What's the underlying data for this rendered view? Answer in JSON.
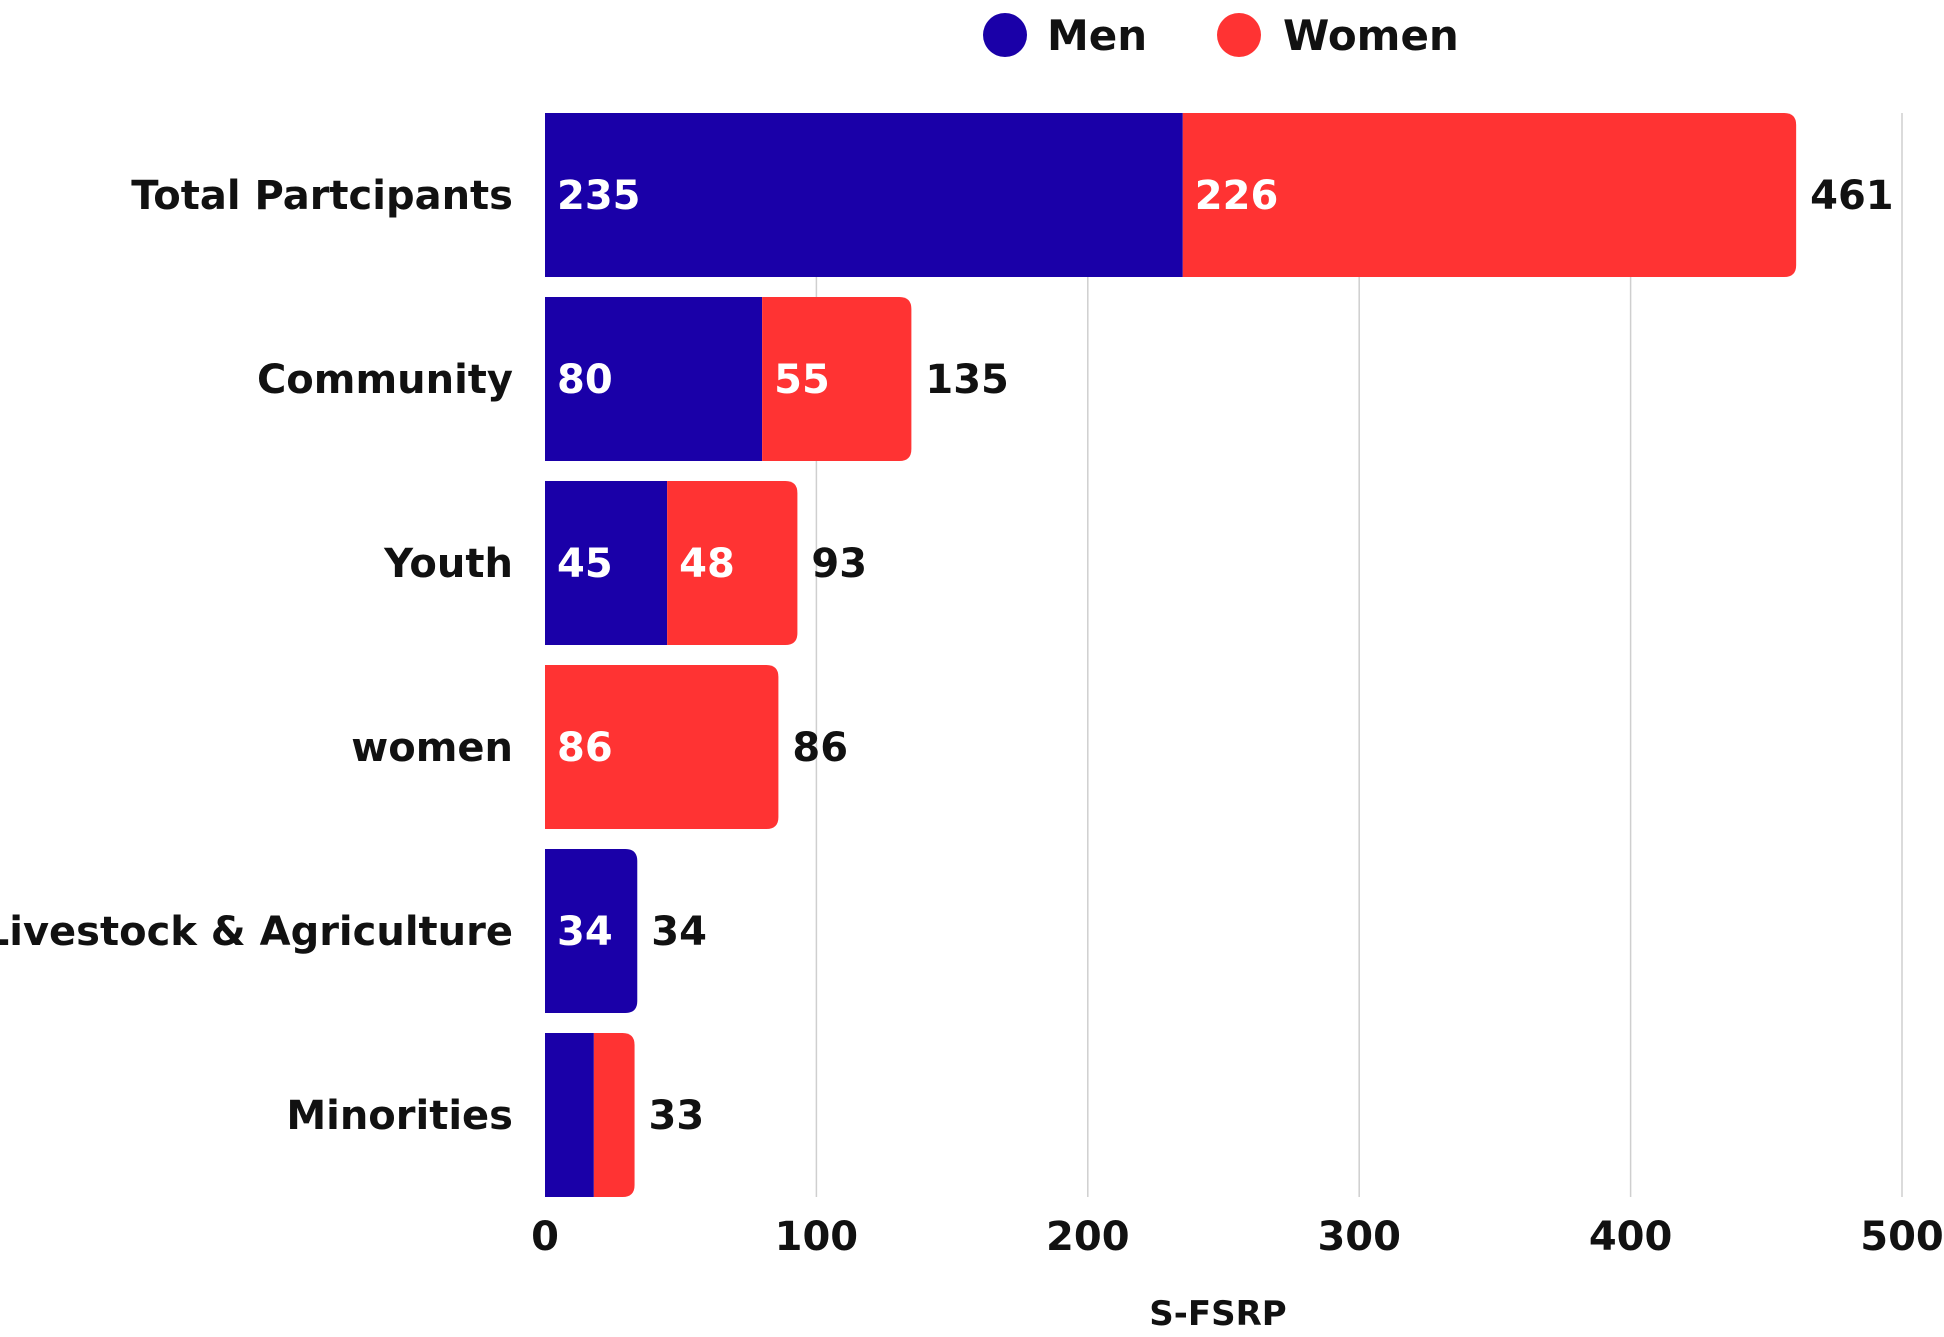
{
  "chart_data": {
    "type": "bar",
    "orientation": "horizontal",
    "stacked": true,
    "categories": [
      "Total Partcipants",
      "Community",
      "Youth",
      "women",
      "Livestock & Agriculture",
      "Minorities"
    ],
    "series": [
      {
        "name": "Men",
        "color": "#1a00a8",
        "values": [
          235,
          80,
          45,
          0,
          34,
          18
        ],
        "labels": [
          "235",
          "80",
          "45",
          "",
          "34",
          ""
        ]
      },
      {
        "name": "Women",
        "color": "#ff3333",
        "values": [
          226,
          55,
          48,
          86,
          0,
          15
        ],
        "labels": [
          "226",
          "55",
          "48",
          "86",
          "",
          ""
        ]
      }
    ],
    "totals": [
      461,
      135,
      93,
      86,
      34,
      33
    ],
    "title": "",
    "xlabel": "S-FSRP",
    "ylabel": "",
    "xlim": [
      0,
      500
    ],
    "xticks": [
      0,
      100,
      200,
      300,
      400,
      500
    ],
    "grid": true,
    "legend_position": "top"
  }
}
